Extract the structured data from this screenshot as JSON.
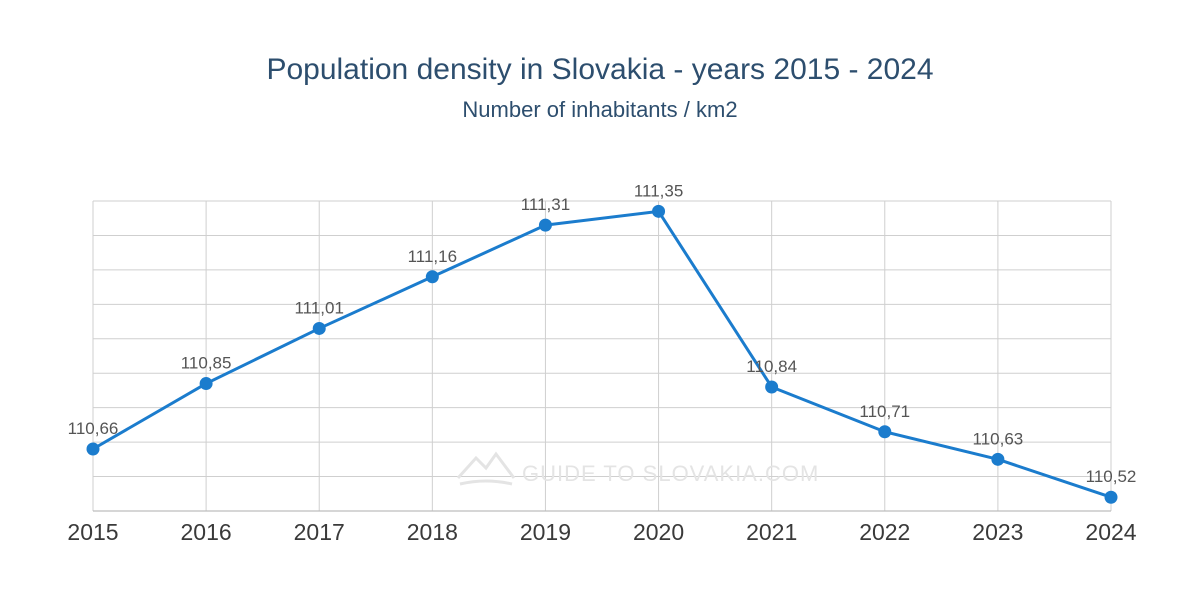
{
  "chart_data": {
    "type": "line",
    "title": "Population density in Slovakia - years 2015 - 2024",
    "subtitle": "Number of inhabitants / km2",
    "xlabel": "",
    "ylabel": "",
    "categories": [
      "2015",
      "2016",
      "2017",
      "2018",
      "2019",
      "2020",
      "2021",
      "2022",
      "2023",
      "2024"
    ],
    "series": [
      {
        "values": [
          110.66,
          110.85,
          111.01,
          111.16,
          111.31,
          111.35,
          110.84,
          110.71,
          110.63,
          110.52
        ],
        "labels": [
          "110,66",
          "110,85",
          "111,01",
          "111,16",
          "111,31",
          "111,35",
          "110,84",
          "110,71",
          "110,63",
          "110,52"
        ]
      }
    ],
    "ylim": [
      110.48,
      111.38
    ],
    "y_grid_step": 0.1,
    "grid": true,
    "legend": "none"
  },
  "watermark": "GUIDE TO SLOVAKIA.COM",
  "colors": {
    "title": "#2d4e6e",
    "line": "#1b7ccd",
    "grid": "#cfcfcf",
    "tick_label": "#3a3a3a",
    "data_label": "#555555",
    "watermark": "#e4e4e4"
  }
}
